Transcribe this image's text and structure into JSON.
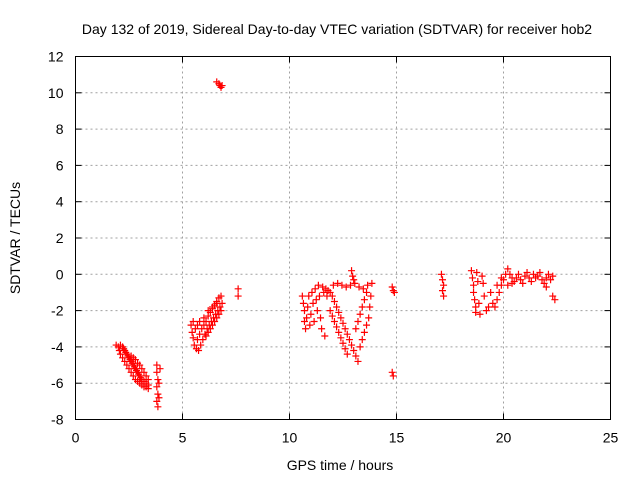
{
  "chart_data": {
    "type": "scatter",
    "title": "Day 132 of 2019, Sidereal Day-to-day VTEC variation (SDTVAR) for receiver hob2",
    "xlabel": "GPS time / hours",
    "ylabel": "SDTVAR / TECUs",
    "xlim": [
      0,
      25
    ],
    "ylim": [
      -8,
      12
    ],
    "xticks": [
      "0",
      "5",
      "10",
      "15",
      "20",
      "25"
    ],
    "yticks": [
      "-8",
      "-6",
      "-4",
      "-2",
      "0",
      "2",
      "4",
      "6",
      "8",
      "10",
      "12"
    ],
    "grid": true,
    "marker": "+",
    "color": "#ff0000",
    "series": [
      {
        "name": "SDTVAR",
        "points": [
          [
            1.9,
            -3.9
          ],
          [
            2.0,
            -4.0
          ],
          [
            2.05,
            -4.2
          ],
          [
            2.1,
            -4.4
          ],
          [
            2.1,
            -3.9
          ],
          [
            2.2,
            -4.0
          ],
          [
            2.2,
            -4.6
          ],
          [
            2.25,
            -4.1
          ],
          [
            2.3,
            -4.8
          ],
          [
            2.3,
            -4.2
          ],
          [
            2.35,
            -4.3
          ],
          [
            2.4,
            -5.0
          ],
          [
            2.4,
            -4.4
          ],
          [
            2.45,
            -4.5
          ],
          [
            2.5,
            -5.2
          ],
          [
            2.5,
            -4.6
          ],
          [
            2.55,
            -4.7
          ],
          [
            2.6,
            -5.4
          ],
          [
            2.6,
            -4.8
          ],
          [
            2.65,
            -4.9
          ],
          [
            2.7,
            -5.6
          ],
          [
            2.7,
            -5.0
          ],
          [
            2.75,
            -5.1
          ],
          [
            2.8,
            -5.8
          ],
          [
            2.8,
            -5.2
          ],
          [
            2.85,
            -5.3
          ],
          [
            2.9,
            -5.9
          ],
          [
            2.9,
            -5.4
          ],
          [
            2.95,
            -5.5
          ],
          [
            3.0,
            -6.0
          ],
          [
            3.0,
            -5.6
          ],
          [
            3.05,
            -5.7
          ],
          [
            3.1,
            -6.1
          ],
          [
            3.1,
            -5.8
          ],
          [
            3.2,
            -6.2
          ],
          [
            3.2,
            -5.9
          ],
          [
            3.3,
            -6.2
          ],
          [
            3.3,
            -6.0
          ],
          [
            3.4,
            -6.1
          ],
          [
            3.4,
            -6.3
          ],
          [
            2.6,
            -4.5
          ],
          [
            2.7,
            -4.6
          ],
          [
            2.8,
            -4.7
          ],
          [
            2.9,
            -4.9
          ],
          [
            3.0,
            -5.0
          ],
          [
            3.1,
            -5.2
          ],
          [
            3.2,
            -5.4
          ],
          [
            3.3,
            -5.6
          ],
          [
            3.4,
            -5.8
          ],
          [
            3.8,
            -5.0
          ],
          [
            3.8,
            -5.4
          ],
          [
            3.85,
            -5.8
          ],
          [
            3.8,
            -6.2
          ],
          [
            3.85,
            -6.6
          ],
          [
            3.8,
            -7.0
          ],
          [
            3.85,
            -7.3
          ],
          [
            3.9,
            -6.8
          ],
          [
            3.9,
            -6.0
          ],
          [
            3.95,
            -5.2
          ],
          [
            5.4,
            -2.8
          ],
          [
            5.45,
            -3.2
          ],
          [
            5.5,
            -3.5
          ],
          [
            5.5,
            -2.6
          ],
          [
            5.55,
            -3.9
          ],
          [
            5.6,
            -3.0
          ],
          [
            5.65,
            -4.1
          ],
          [
            5.7,
            -3.6
          ],
          [
            5.7,
            -2.8
          ],
          [
            5.75,
            -4.2
          ],
          [
            5.8,
            -3.3
          ],
          [
            5.8,
            -2.6
          ],
          [
            5.85,
            -3.9
          ],
          [
            5.9,
            -3.0
          ],
          [
            5.95,
            -3.6
          ],
          [
            6.0,
            -2.8
          ],
          [
            6.0,
            -2.4
          ],
          [
            6.05,
            -3.3
          ],
          [
            6.1,
            -2.6
          ],
          [
            6.15,
            -3.0
          ],
          [
            6.2,
            -2.3
          ],
          [
            6.25,
            -2.8
          ],
          [
            6.3,
            -2.1
          ],
          [
            6.35,
            -2.6
          ],
          [
            6.4,
            -1.9
          ],
          [
            6.45,
            -2.4
          ],
          [
            6.5,
            -1.7
          ],
          [
            6.55,
            -2.2
          ],
          [
            6.6,
            -1.5
          ],
          [
            6.65,
            -2.0
          ],
          [
            6.7,
            -1.3
          ],
          [
            6.75,
            -1.8
          ],
          [
            6.8,
            -1.2
          ],
          [
            6.85,
            -1.6
          ],
          [
            6.1,
            -3.4
          ],
          [
            6.2,
            -3.2
          ],
          [
            6.3,
            -3.0
          ],
          [
            6.4,
            -2.8
          ],
          [
            6.5,
            -2.6
          ],
          [
            6.6,
            -2.4
          ],
          [
            6.7,
            -2.2
          ],
          [
            6.8,
            -2.0
          ],
          [
            6.2,
            -2.0
          ],
          [
            6.4,
            -1.8
          ],
          [
            6.6,
            -1.6
          ],
          [
            6.6,
            10.6
          ],
          [
            6.7,
            10.5
          ],
          [
            6.75,
            10.4
          ],
          [
            6.8,
            10.3
          ],
          [
            6.85,
            10.4
          ],
          [
            7.6,
            -0.8
          ],
          [
            7.6,
            -1.2
          ],
          [
            10.6,
            -1.2
          ],
          [
            10.65,
            -1.6
          ],
          [
            10.7,
            -2.0
          ],
          [
            10.7,
            -2.6
          ],
          [
            10.75,
            -3.0
          ],
          [
            10.8,
            -2.4
          ],
          [
            10.85,
            -1.8
          ],
          [
            10.9,
            -1.2
          ],
          [
            10.95,
            -2.8
          ],
          [
            11.0,
            -2.2
          ],
          [
            11.05,
            -1.0
          ],
          [
            11.1,
            -1.6
          ],
          [
            11.15,
            -2.6
          ],
          [
            11.2,
            -0.8
          ],
          [
            11.25,
            -1.4
          ],
          [
            11.3,
            -2.0
          ],
          [
            11.35,
            -0.6
          ],
          [
            11.4,
            -1.2
          ],
          [
            11.45,
            -2.4
          ],
          [
            11.5,
            -3.0
          ],
          [
            11.55,
            -0.7
          ],
          [
            11.6,
            -1.0
          ],
          [
            11.65,
            -3.4
          ],
          [
            11.7,
            -0.8
          ],
          [
            11.75,
            -1.2
          ],
          [
            11.8,
            -0.9
          ],
          [
            11.9,
            -1.0
          ],
          [
            12.0,
            -1.2
          ],
          [
            12.05,
            -0.6
          ],
          [
            12.1,
            -1.5
          ],
          [
            12.2,
            -1.8
          ],
          [
            12.25,
            -0.5
          ],
          [
            12.3,
            -2.1
          ],
          [
            12.4,
            -2.4
          ],
          [
            12.45,
            -0.6
          ],
          [
            12.5,
            -2.7
          ],
          [
            12.6,
            -3.0
          ],
          [
            12.65,
            -0.7
          ],
          [
            12.7,
            -3.3
          ],
          [
            12.8,
            -3.6
          ],
          [
            12.85,
            -0.6
          ],
          [
            12.9,
            -3.9
          ],
          [
            13.0,
            -4.2
          ],
          [
            13.05,
            -0.5
          ],
          [
            13.1,
            -4.5
          ],
          [
            13.2,
            -4.8
          ],
          [
            13.25,
            -0.7
          ],
          [
            13.3,
            -4.0
          ],
          [
            13.4,
            -3.6
          ],
          [
            13.45,
            -0.8
          ],
          [
            13.5,
            -3.2
          ],
          [
            13.6,
            -2.8
          ],
          [
            13.65,
            -0.6
          ],
          [
            13.7,
            -2.4
          ],
          [
            13.75,
            -1.8
          ],
          [
            13.8,
            -1.2
          ],
          [
            13.85,
            -0.5
          ],
          [
            12.9,
            0.2
          ],
          [
            12.95,
            -0.1
          ],
          [
            13.0,
            -0.3
          ],
          [
            11.9,
            -2.0
          ],
          [
            12.0,
            -2.3
          ],
          [
            12.1,
            -2.6
          ],
          [
            12.2,
            -2.9
          ],
          [
            12.3,
            -3.2
          ],
          [
            12.4,
            -3.5
          ],
          [
            12.5,
            -3.8
          ],
          [
            12.6,
            -4.1
          ],
          [
            12.7,
            -4.4
          ],
          [
            13.1,
            -3.0
          ],
          [
            13.2,
            -2.6
          ],
          [
            13.3,
            -2.2
          ],
          [
            13.4,
            -1.8
          ],
          [
            13.5,
            -1.4
          ],
          [
            13.6,
            -1.0
          ],
          [
            14.8,
            -0.7
          ],
          [
            14.85,
            -0.9
          ],
          [
            14.9,
            -1.0
          ],
          [
            14.8,
            -5.4
          ],
          [
            14.85,
            -5.6
          ],
          [
            17.1,
            0.0
          ],
          [
            17.15,
            -0.3
          ],
          [
            17.2,
            -0.6
          ],
          [
            17.15,
            -0.9
          ],
          [
            17.2,
            -1.2
          ],
          [
            18.5,
            0.2
          ],
          [
            18.55,
            -0.2
          ],
          [
            18.6,
            -0.6
          ],
          [
            18.6,
            -1.0
          ],
          [
            18.65,
            -1.4
          ],
          [
            18.7,
            -1.8
          ],
          [
            18.7,
            -2.1
          ],
          [
            18.75,
            0.1
          ],
          [
            18.8,
            -0.4
          ],
          [
            18.85,
            -1.6
          ],
          [
            18.9,
            -2.2
          ],
          [
            19.0,
            -0.1
          ],
          [
            19.05,
            -0.5
          ],
          [
            19.1,
            -1.2
          ],
          [
            19.2,
            -2.0
          ],
          [
            19.3,
            -1.8
          ],
          [
            19.4,
            -1.0
          ],
          [
            19.5,
            -1.6
          ],
          [
            19.6,
            -1.8
          ],
          [
            19.7,
            -1.4
          ],
          [
            19.8,
            -1.0
          ],
          [
            19.9,
            -0.6
          ],
          [
            20.0,
            -0.3
          ],
          [
            20.1,
            0.0
          ],
          [
            20.2,
            0.3
          ],
          [
            20.3,
            0.0
          ],
          [
            20.4,
            -0.2
          ],
          [
            20.5,
            -0.4
          ],
          [
            20.6,
            -0.2
          ],
          [
            20.7,
            0.0
          ],
          [
            20.8,
            -0.3
          ],
          [
            20.9,
            -0.5
          ],
          [
            21.0,
            -0.1
          ],
          [
            21.1,
            0.1
          ],
          [
            21.2,
            -0.2
          ],
          [
            21.3,
            -0.4
          ],
          [
            21.4,
            0.0
          ],
          [
            21.5,
            -0.2
          ],
          [
            21.6,
            -0.1
          ],
          [
            21.7,
            0.1
          ],
          [
            21.8,
            -0.3
          ],
          [
            21.9,
            -0.5
          ],
          [
            22.0,
            -0.2
          ],
          [
            22.1,
            0.0
          ],
          [
            22.2,
            -0.3
          ],
          [
            22.3,
            -0.1
          ],
          [
            22.0,
            -0.7
          ],
          [
            22.3,
            -1.2
          ],
          [
            22.4,
            -1.4
          ],
          [
            19.7,
            -0.6
          ],
          [
            19.9,
            -0.2
          ],
          [
            20.2,
            -0.6
          ],
          [
            20.4,
            -0.5
          ]
        ]
      }
    ]
  }
}
